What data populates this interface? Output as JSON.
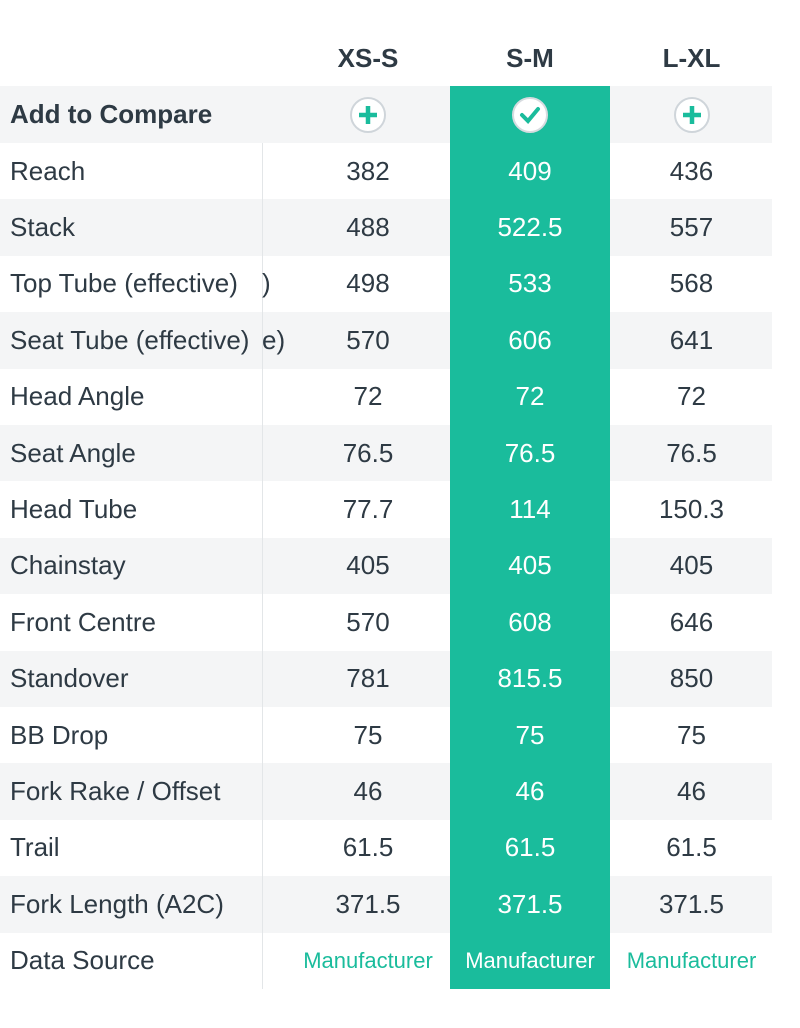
{
  "columns": [
    "XS-S",
    "S-M",
    "L-XL"
  ],
  "compare": {
    "label": "Add to Compare",
    "selected": [
      false,
      true,
      false
    ]
  },
  "rows": [
    {
      "label": "Reach",
      "values": [
        382,
        409,
        436
      ]
    },
    {
      "label": "Stack",
      "values": [
        488,
        522.5,
        557
      ]
    },
    {
      "label": "Top Tube (effective)",
      "clipped": ")",
      "values": [
        498,
        533,
        568
      ]
    },
    {
      "label": "Seat Tube (effective)",
      "clipped": "e)",
      "values": [
        570,
        606,
        641
      ]
    },
    {
      "label": "Head Angle",
      "values": [
        72,
        72,
        72
      ]
    },
    {
      "label": "Seat Angle",
      "values": [
        76.5,
        76.5,
        76.5
      ]
    },
    {
      "label": "Head Tube",
      "values": [
        77.7,
        114,
        150.3
      ]
    },
    {
      "label": "Chainstay",
      "values": [
        405,
        405,
        405
      ]
    },
    {
      "label": "Front Centre",
      "values": [
        570,
        608,
        646
      ]
    },
    {
      "label": "Standover",
      "values": [
        781,
        815.5,
        850
      ]
    },
    {
      "label": "BB Drop",
      "values": [
        75,
        75,
        75
      ]
    },
    {
      "label": "Fork Rake / Offset",
      "values": [
        46,
        46,
        46
      ]
    },
    {
      "label": "Trail",
      "values": [
        61.5,
        61.5,
        61.5
      ]
    },
    {
      "label": "Fork Length (A2C)",
      "values": [
        371.5,
        371.5,
        371.5
      ]
    }
  ],
  "source": {
    "label": "Data Source",
    "values": [
      "Manufacturer",
      "Manufacturer",
      "Manufacturer"
    ]
  }
}
